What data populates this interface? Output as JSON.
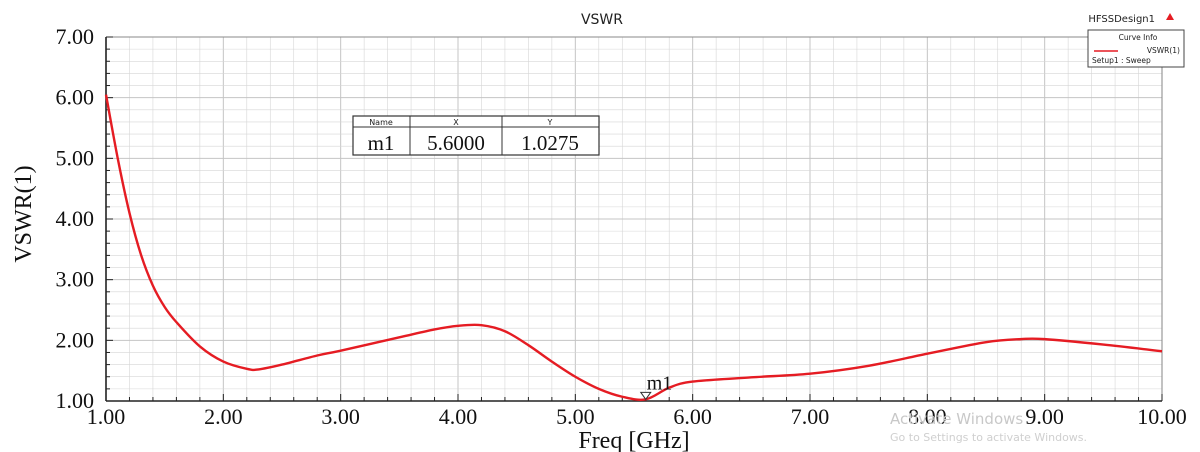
{
  "design_name": "HFSSDesign1",
  "colors": {
    "curve": "#e51c23",
    "grid": "#d6d6d6",
    "axis": "#222222"
  },
  "legend": {
    "header": "Curve Info",
    "entry": "VSWR(1)",
    "sub": "Setup1 : Sweep"
  },
  "marker_table": {
    "headers": [
      "Name",
      "X",
      "Y"
    ],
    "row": [
      "m1",
      "5.6000",
      "1.0275"
    ]
  },
  "watermark": {
    "line1": "Activate Windows",
    "line2": "Go to Settings to activate Windows."
  },
  "chart_data": {
    "type": "line",
    "title": "VSWR",
    "xlabel": "Freq [GHz]",
    "ylabel": "VSWR(1)",
    "xlim": [
      1.0,
      10.0
    ],
    "ylim": [
      1.0,
      7.0
    ],
    "x_ticks": [
      "1.00",
      "2.00",
      "3.00",
      "4.00",
      "5.00",
      "6.00",
      "7.00",
      "8.00",
      "9.00",
      "10.00"
    ],
    "y_ticks": [
      "1.00",
      "2.00",
      "3.00",
      "4.00",
      "5.00",
      "6.00",
      "7.00"
    ],
    "grid": true,
    "legend_position": "top-right",
    "series": [
      {
        "name": "VSWR(1)",
        "x": [
          1.0,
          1.1,
          1.2,
          1.3,
          1.4,
          1.5,
          1.6,
          1.8,
          2.0,
          2.2,
          2.3,
          2.5,
          2.8,
          3.0,
          3.5,
          3.8,
          4.0,
          4.2,
          4.4,
          4.6,
          4.8,
          5.0,
          5.2,
          5.4,
          5.6,
          5.8,
          6.0,
          6.5,
          7.0,
          7.5,
          8.0,
          8.5,
          8.8,
          9.0,
          9.5,
          10.0
        ],
        "y": [
          6.05,
          5.0,
          4.1,
          3.4,
          2.9,
          2.55,
          2.3,
          1.9,
          1.65,
          1.53,
          1.52,
          1.6,
          1.75,
          1.83,
          2.05,
          2.18,
          2.24,
          2.25,
          2.15,
          1.92,
          1.65,
          1.4,
          1.2,
          1.07,
          1.0275,
          1.22,
          1.32,
          1.39,
          1.45,
          1.58,
          1.78,
          1.97,
          2.02,
          2.02,
          1.93,
          1.82
        ]
      }
    ],
    "markers": [
      {
        "name": "m1",
        "x": 5.6,
        "y": 1.0275
      }
    ]
  }
}
